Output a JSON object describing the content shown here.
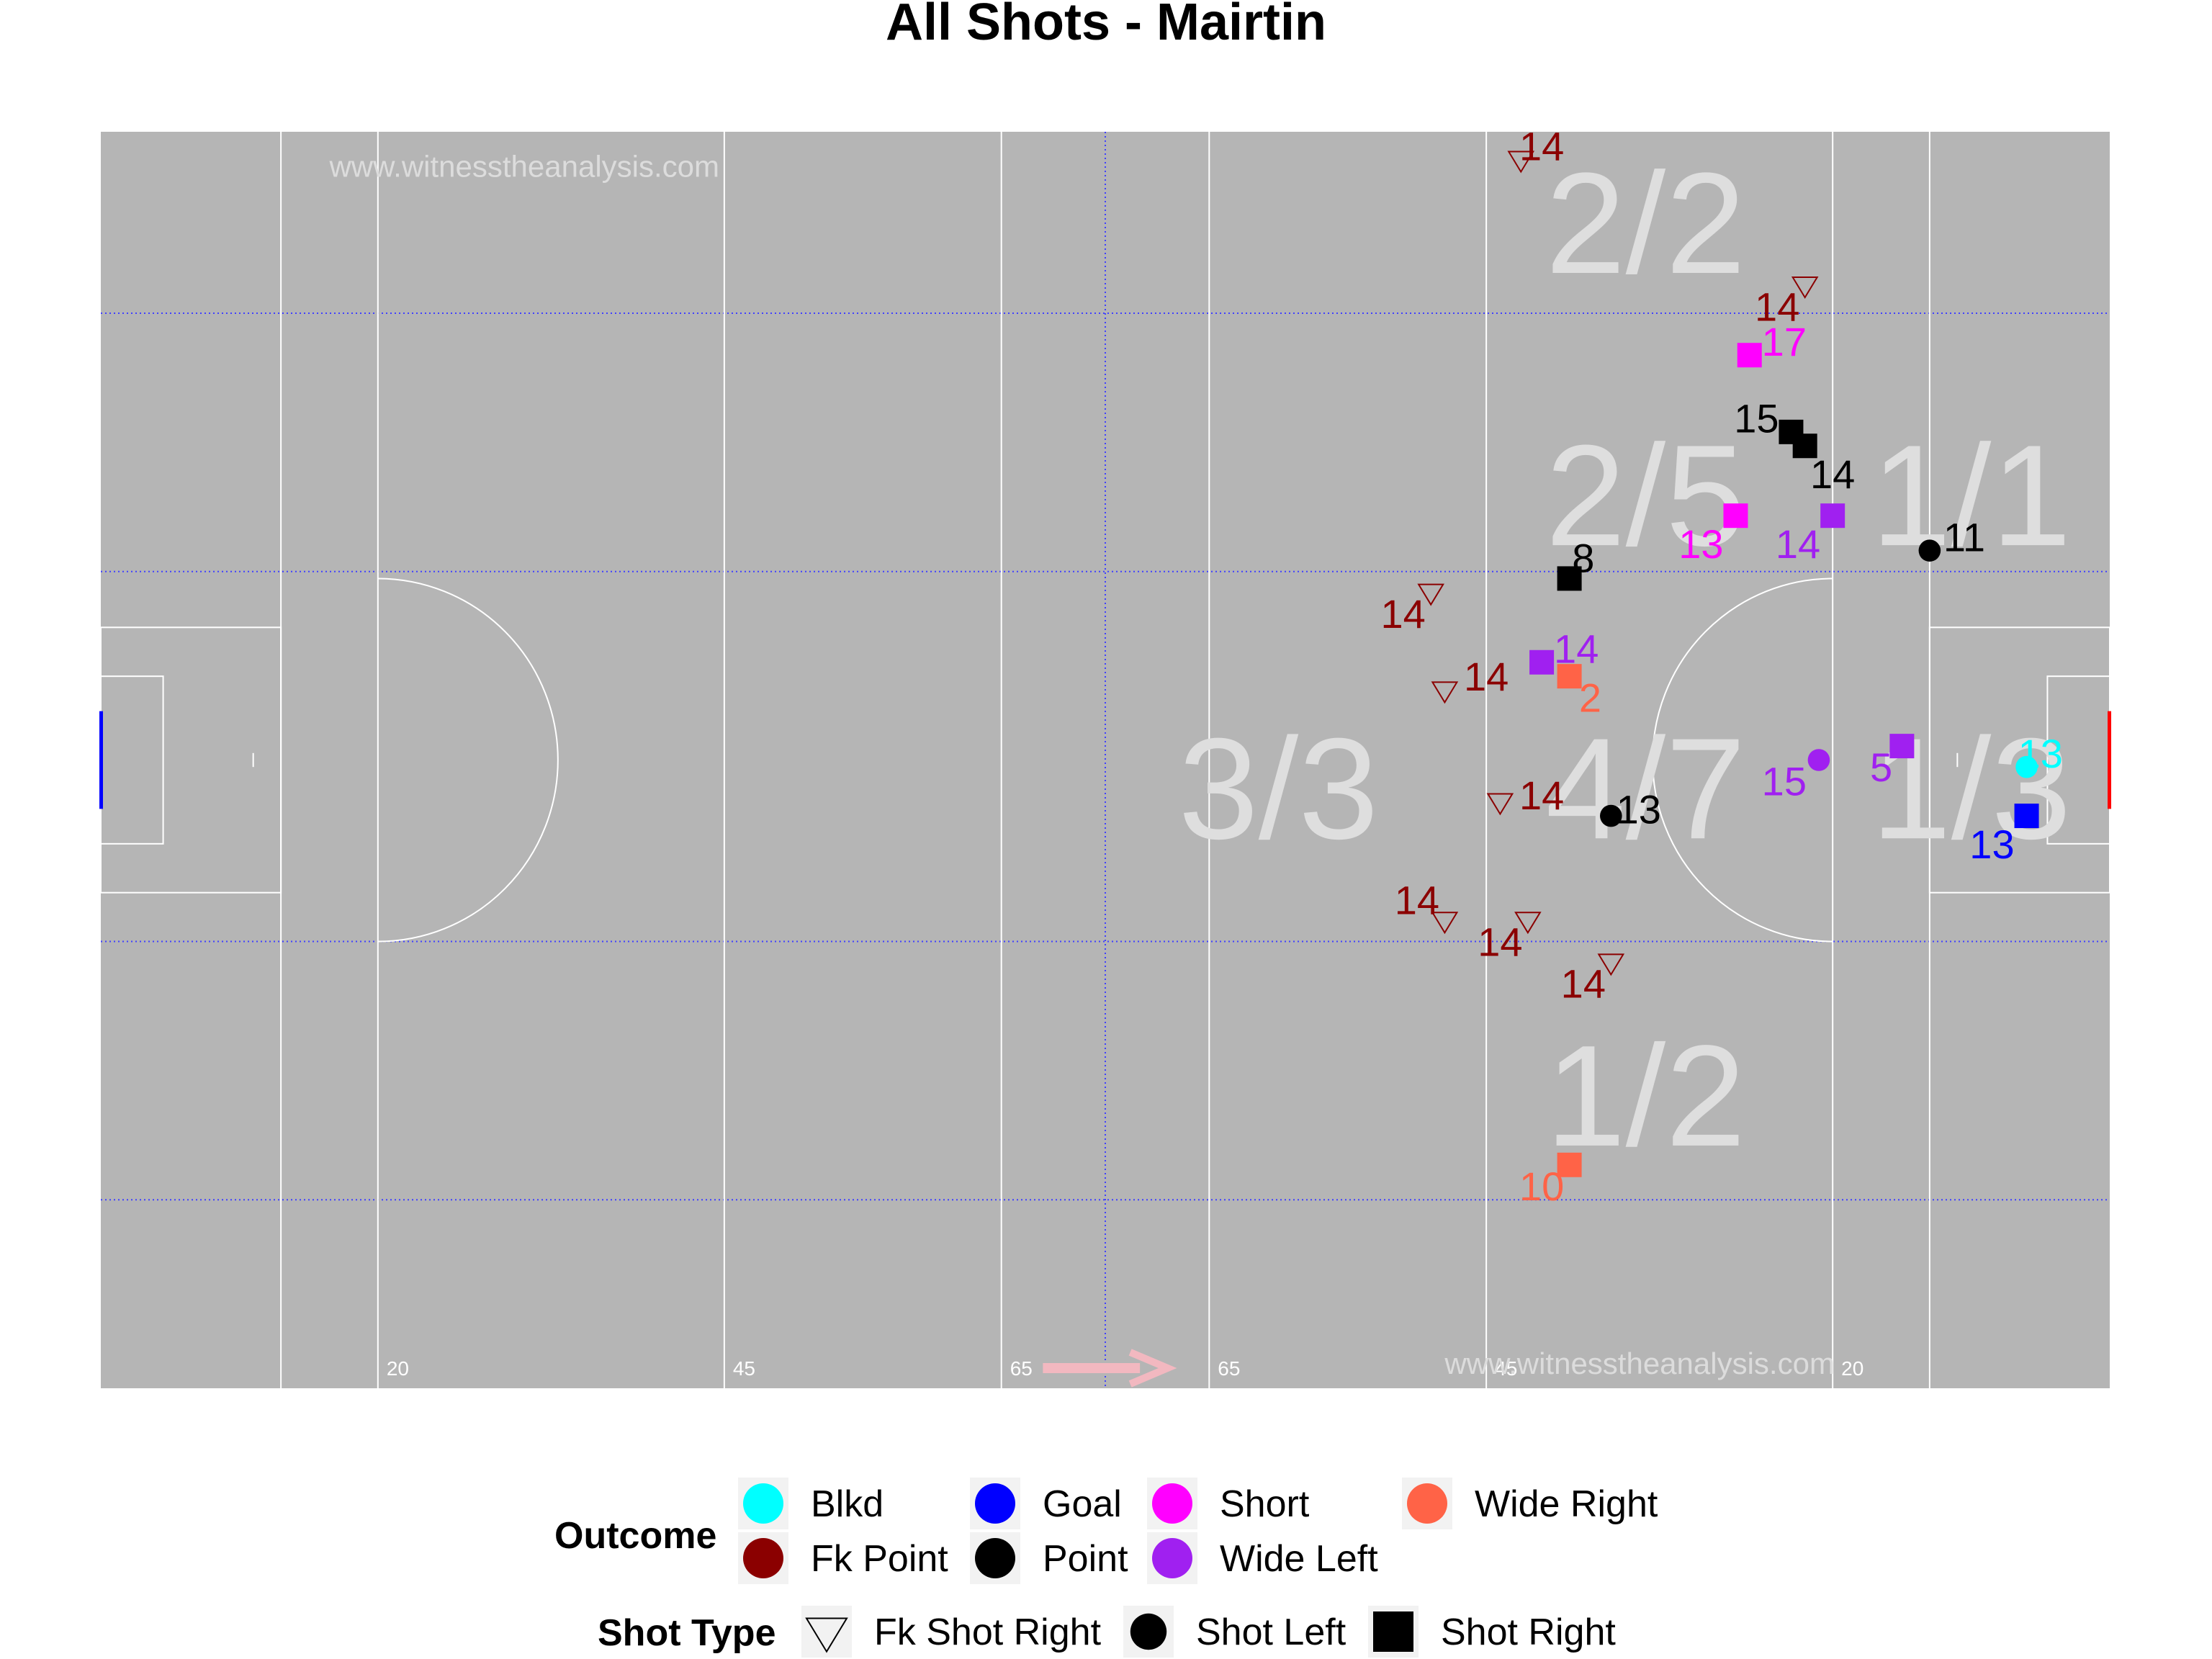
{
  "chart_data": {
    "type": "scatter",
    "title": "All Shots - Mairtin",
    "watermark": "www.witnesstheanalysis.com",
    "x_domain": [
      0,
      145
    ],
    "y_domain": [
      0,
      90
    ],
    "yard_lines": [
      {
        "x": 20,
        "label": "20"
      },
      {
        "x": 45,
        "label": "45"
      },
      {
        "x": 65,
        "label": "65"
      },
      {
        "x": 80,
        "label": "65"
      },
      {
        "x": 100,
        "label": "45"
      },
      {
        "x": 125,
        "label": "20"
      }
    ],
    "zones": [
      {
        "label": "2/2",
        "x": 111.5,
        "y": 83.5
      },
      {
        "label": "2/5",
        "x": 111.5,
        "y": 64
      },
      {
        "label": "1/1",
        "x": 135,
        "y": 64
      },
      {
        "label": "3/3",
        "x": 85,
        "y": 43
      },
      {
        "label": "4/7",
        "x": 111.5,
        "y": 43
      },
      {
        "label": "1/3",
        "x": 135,
        "y": 43
      },
      {
        "label": "1/2",
        "x": 111.5,
        "y": 21
      }
    ],
    "series": [
      {
        "name": "Blkd",
        "color": "#00ffff"
      },
      {
        "name": "Fk Point",
        "color": "#8b0000"
      },
      {
        "name": "Goal",
        "color": "#0000ff"
      },
      {
        "name": "Point",
        "color": "#000000"
      },
      {
        "name": "Short",
        "color": "#ff00ff"
      },
      {
        "name": "Wide Left",
        "color": "#a020f0"
      },
      {
        "name": "Wide Right",
        "color": "#ff6347"
      }
    ],
    "shot_types": [
      "Fk Shot Right",
      "Shot Left",
      "Shot Right"
    ],
    "points": [
      {
        "x": 102.5,
        "y": 88,
        "outcome": "Fk Point",
        "shot": "Fk Shot Right",
        "label": "14",
        "lx": 104,
        "ly": 89
      },
      {
        "x": 123,
        "y": 79,
        "outcome": "Fk Point",
        "shot": "Fk Shot Right",
        "label": "14",
        "lx": 121,
        "ly": 77.5
      },
      {
        "x": 119,
        "y": 74,
        "outcome": "Short",
        "shot": "Shot Right",
        "label": "17",
        "lx": 121.5,
        "ly": 75
      },
      {
        "x": 122,
        "y": 68.5,
        "outcome": "Point",
        "shot": "Shot Right",
        "label": "15",
        "lx": 119.5,
        "ly": 69.5
      },
      {
        "x": 123,
        "y": 67.5,
        "outcome": "Point",
        "shot": "Shot Right",
        "label": "14",
        "lx": 125,
        "ly": 65.5
      },
      {
        "x": 118,
        "y": 62.5,
        "outcome": "Short",
        "shot": "Shot Right",
        "label": "13",
        "lx": 115.5,
        "ly": 60.5
      },
      {
        "x": 125,
        "y": 62.5,
        "outcome": "Wide Left",
        "shot": "Shot Right",
        "label": "14",
        "lx": 122.5,
        "ly": 60.5
      },
      {
        "x": 132,
        "y": 60,
        "outcome": "Point",
        "shot": "Shot Left",
        "label": "11",
        "lx": 134.5,
        "ly": 61
      },
      {
        "x": 106,
        "y": 58,
        "outcome": "Point",
        "shot": "Shot Right",
        "label": "8",
        "lx": 107,
        "ly": 59.5
      },
      {
        "x": 96,
        "y": 57,
        "outcome": "Fk Point",
        "shot": "Fk Shot Right",
        "label": "14",
        "lx": 94,
        "ly": 55.5
      },
      {
        "x": 104,
        "y": 52,
        "outcome": "Wide Left",
        "shot": "Shot Right",
        "label": "14",
        "lx": 106.5,
        "ly": 53
      },
      {
        "x": 106,
        "y": 51,
        "outcome": "Wide Right",
        "shot": "Shot Right",
        "label": "2",
        "lx": 107.5,
        "ly": 49.5
      },
      {
        "x": 97,
        "y": 50,
        "outcome": "Fk Point",
        "shot": "Fk Shot Right",
        "label": "14",
        "lx": 100,
        "ly": 51
      },
      {
        "x": 124,
        "y": 45,
        "outcome": "Wide Left",
        "shot": "Shot Left",
        "label": "15",
        "lx": 121.5,
        "ly": 43.5
      },
      {
        "x": 130,
        "y": 46,
        "outcome": "Wide Left",
        "shot": "Shot Right",
        "label": "5",
        "lx": 128.5,
        "ly": 44.5
      },
      {
        "x": 139,
        "y": 44.5,
        "outcome": "Blkd",
        "shot": "Shot Left",
        "label": "13",
        "lx": 140,
        "ly": 45.5
      },
      {
        "x": 101,
        "y": 42,
        "outcome": "Fk Point",
        "shot": "Fk Shot Right",
        "label": "14",
        "lx": 104,
        "ly": 42.5
      },
      {
        "x": 109,
        "y": 41,
        "outcome": "Point",
        "shot": "Shot Left",
        "label": "13",
        "lx": 111,
        "ly": 41.5
      },
      {
        "x": 139,
        "y": 41,
        "outcome": "Goal",
        "shot": "Shot Right",
        "label": "13",
        "lx": 136.5,
        "ly": 39
      },
      {
        "x": 97,
        "y": 33.5,
        "outcome": "Fk Point",
        "shot": "Fk Shot Right",
        "label": "14",
        "lx": 95,
        "ly": 35
      },
      {
        "x": 103,
        "y": 33.5,
        "outcome": "Fk Point",
        "shot": "Fk Shot Right",
        "label": "14",
        "lx": 101,
        "ly": 32
      },
      {
        "x": 109,
        "y": 30.5,
        "outcome": "Fk Point",
        "shot": "Fk Shot Right",
        "label": "14",
        "lx": 107,
        "ly": 29
      },
      {
        "x": 106,
        "y": 16,
        "outcome": "Wide Right",
        "shot": "Shot Right",
        "label": "10",
        "lx": 104,
        "ly": 14.5
      }
    ],
    "legend": {
      "outcome_title": "Outcome",
      "shot_title": "Shot Type"
    }
  }
}
